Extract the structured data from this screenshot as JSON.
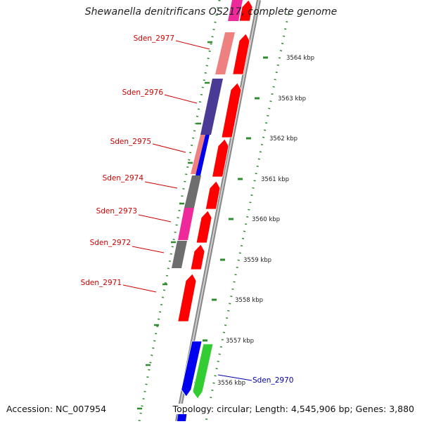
{
  "title": "Shewanella denitrificans OS217, complete genome",
  "accession": "Accession: NC_007954",
  "topology": "Topology: circular; Length: 4,545,906 bp; Genes: 3,880",
  "colors": {
    "red": "#ff0000",
    "pink": "#ee8080",
    "indigo": "#4a3a96",
    "blue": "#0000ee",
    "gray": "#6e6e6e",
    "magenta": "#ee2a9a",
    "green": "#33cc33",
    "label_red": "#cc0000",
    "label_blue": "#0000aa",
    "tick_green": "#2e8b2e"
  },
  "ticks": [
    {
      "label": "3564 kbp"
    },
    {
      "label": "3563 kbp"
    },
    {
      "label": "3562 kbp"
    },
    {
      "label": "3561 kbp"
    },
    {
      "label": "3560 kbp"
    },
    {
      "label": "3559 kbp"
    },
    {
      "label": "3558 kbp"
    },
    {
      "label": "3557 kbp"
    },
    {
      "label": "3556 kbp"
    }
  ],
  "gene_labels": [
    {
      "name": "Sden_2977",
      "color": "label_red"
    },
    {
      "name": "Sden_2976",
      "color": "label_red"
    },
    {
      "name": "Sden_2975",
      "color": "label_red"
    },
    {
      "name": "Sden_2974",
      "color": "label_red"
    },
    {
      "name": "Sden_2973",
      "color": "label_red"
    },
    {
      "name": "Sden_2972",
      "color": "label_red"
    },
    {
      "name": "Sden_2971",
      "color": "label_red"
    },
    {
      "name": "Sden_2970",
      "color": "label_blue"
    }
  ]
}
